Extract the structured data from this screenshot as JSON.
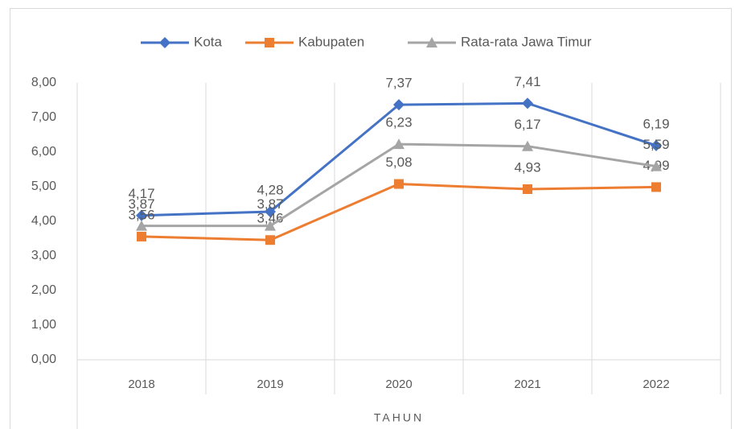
{
  "chart_data": {
    "type": "line",
    "xlabel": "TAHUN",
    "categories": [
      "2018",
      "2019",
      "2020",
      "2021",
      "2022"
    ],
    "series": [
      {
        "name": "Kota",
        "color": "#4472c4",
        "marker": "diamond",
        "values": [
          4.17,
          4.28,
          7.37,
          7.41,
          6.19
        ],
        "value_labels": [
          "4,17",
          "4,28",
          "7,37",
          "7,41",
          "6,19"
        ]
      },
      {
        "name": "Kabupaten",
        "color": "#ed7d31",
        "marker": "square",
        "values": [
          3.56,
          3.46,
          5.08,
          4.93,
          4.99
        ],
        "value_labels": [
          "3,56",
          "3,46",
          "5,08",
          "4,93",
          "4,99"
        ]
      },
      {
        "name": "Rata-rata Jawa Timur",
        "color": "#a5a5a5",
        "marker": "triangle",
        "values": [
          3.87,
          3.87,
          6.23,
          6.17,
          5.59
        ],
        "value_labels": [
          "3,87",
          "3,87",
          "6,23",
          "6,17",
          "5,59"
        ]
      }
    ],
    "ylim": [
      0,
      8
    ],
    "yticks": [
      {
        "value": 0,
        "label": "0,00"
      },
      {
        "value": 1,
        "label": "1,00"
      },
      {
        "value": 2,
        "label": "2,00"
      },
      {
        "value": 3,
        "label": "3,00"
      },
      {
        "value": 4,
        "label": "4,00"
      },
      {
        "value": 5,
        "label": "5,00"
      },
      {
        "value": 6,
        "label": "6,00"
      },
      {
        "value": 7,
        "label": "7,00"
      },
      {
        "value": 8,
        "label": "8,00"
      }
    ],
    "legend": "top"
  }
}
